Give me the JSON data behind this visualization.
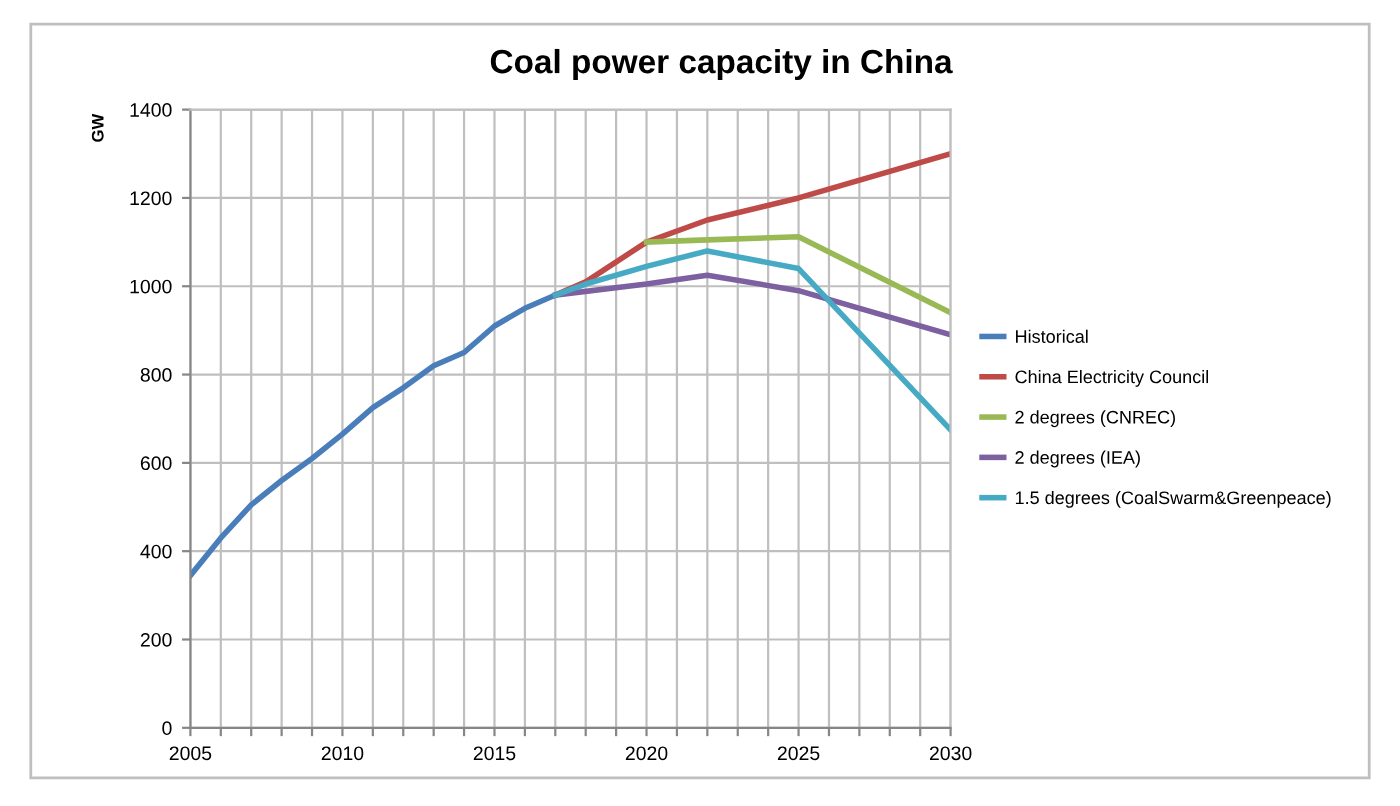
{
  "chart_data": {
    "type": "line",
    "title": "Coal power capacity in China",
    "ylabel": "GW",
    "xlim": [
      2005,
      2030
    ],
    "xticks": [
      2005,
      {
        "value": 2006,
        "label": null
      },
      {
        "value": 2007,
        "label": null
      },
      {
        "value": 2008,
        "label": null
      },
      {
        "value": 2009,
        "label": null
      },
      2010,
      {
        "value": 2011,
        "label": null
      },
      {
        "value": 2012,
        "label": null
      },
      {
        "value": 2013,
        "label": null
      },
      {
        "value": 2014,
        "label": null
      },
      2015,
      {
        "value": 2016,
        "label": null
      },
      {
        "value": 2017,
        "label": null
      },
      {
        "value": 2018,
        "label": null
      },
      {
        "value": 2019,
        "label": null
      },
      2020,
      {
        "value": 2021,
        "label": null
      },
      {
        "value": 2022,
        "label": null
      },
      {
        "value": 2023,
        "label": null
      },
      {
        "value": 2024,
        "label": null
      },
      2025,
      {
        "value": 2026,
        "label": null
      },
      {
        "value": 2027,
        "label": null
      },
      {
        "value": 2028,
        "label": null
      },
      {
        "value": 2029,
        "label": null
      },
      2030
    ],
    "ylim": [
      0,
      1400
    ],
    "yticks": [
      0,
      200,
      400,
      600,
      800,
      1000,
      1200,
      1400
    ],
    "grid": true,
    "legend": "right",
    "marker": "none",
    "line_style": "solid",
    "series": [
      {
        "name": "Historical",
        "color": "#4a7ebb",
        "x": [
          2005,
          2006,
          2007,
          2008,
          2009,
          2010,
          2011,
          2012,
          2013,
          2014,
          2015,
          2016,
          2017
        ],
        "values": [
          345,
          430,
          505,
          560,
          610,
          665,
          725,
          770,
          820,
          850,
          910,
          950,
          980
        ]
      },
      {
        "name": "China Electricity Council",
        "color": "#be4b48",
        "x": [
          2017,
          2018,
          2020,
          2022,
          2025,
          2030
        ],
        "values": [
          980,
          1010,
          1100,
          1150,
          1200,
          1300
        ]
      },
      {
        "name": "2 degrees (CNREC)",
        "color": "#98b954",
        "x": [
          2020,
          2022,
          2025,
          2030
        ],
        "values": [
          1100,
          1105,
          1112,
          940
        ]
      },
      {
        "name": "2 degrees (IEA)",
        "color": "#7d60a0",
        "x": [
          2017,
          2020,
          2022,
          2025,
          2030
        ],
        "values": [
          980,
          1005,
          1025,
          990,
          890
        ]
      },
      {
        "name": "1.5 degrees (CoalSwarm&Greenpeace)",
        "color": "#46aac5",
        "x": [
          2017,
          2018,
          2020,
          2022,
          2025,
          2030
        ],
        "values": [
          980,
          1005,
          1045,
          1080,
          1040,
          675
        ]
      }
    ]
  }
}
